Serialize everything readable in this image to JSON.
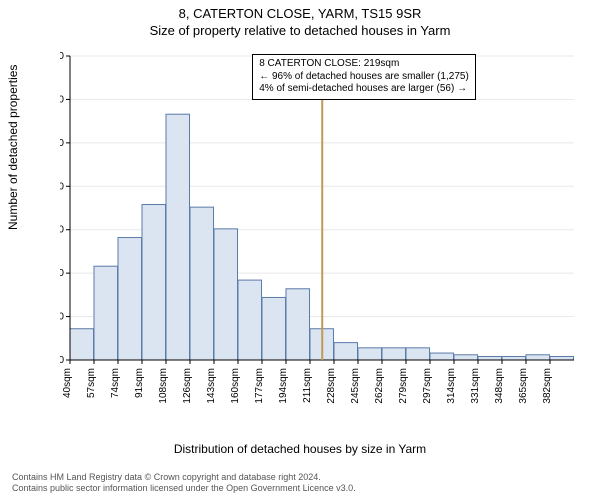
{
  "title_main": "8, CATERTON CLOSE, YARM, TS15 9SR",
  "title_sub": "Size of property relative to detached houses in Yarm",
  "ylabel": "Number of detached properties",
  "xlabel": "Distribution of detached houses by size in Yarm",
  "chart": {
    "type": "histogram",
    "ylim": [
      0,
      350
    ],
    "ytick_step": 50,
    "xticks": [
      40,
      57,
      74,
      91,
      108,
      126,
      143,
      160,
      177,
      194,
      211,
      228,
      245,
      262,
      279,
      297,
      314,
      331,
      348,
      365,
      382
    ],
    "xtick_suffix": "sqm",
    "bar_fill": "#dbe5f1",
    "bar_stroke": "#5b7aa8",
    "background_color": "#ffffff",
    "axis_color": "#000000",
    "grid_color": "#e8e8e8",
    "values": [
      36,
      108,
      141,
      179,
      283,
      176,
      151,
      92,
      72,
      82,
      36,
      20,
      14,
      14,
      14,
      8,
      6,
      4,
      4,
      6,
      4
    ],
    "marker_x": 219,
    "marker_color": "#c29a52",
    "label_fontsize": 10,
    "title_fontsize": 13
  },
  "annotation": {
    "line1": "8 CATERTON CLOSE: 219sqm",
    "line2": "← 96% of detached houses are smaller (1,275)",
    "line3": "4% of semi-detached houses are larger (56) →"
  },
  "footer": {
    "line1": "Contains HM Land Registry data © Crown copyright and database right 2024.",
    "line2": "Contains public sector information licensed under the Open Government Licence v3.0."
  }
}
